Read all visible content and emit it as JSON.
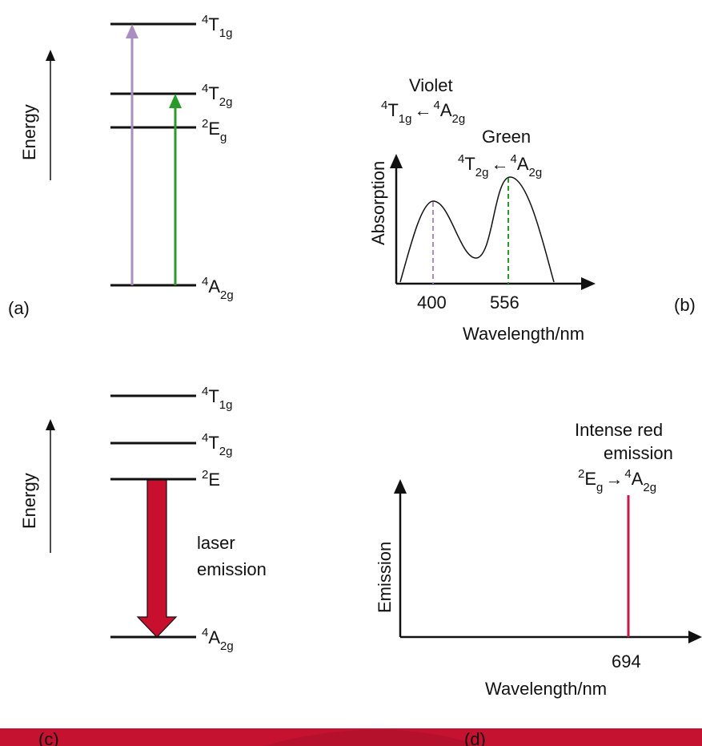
{
  "colors": {
    "violet": "#ab8ec0",
    "green": "#2a9a2a",
    "laser": "#c8102e",
    "emission_line": "#c8184a",
    "banner": "#c41230",
    "banner_dark": "#a50d28"
  },
  "panel_a": {
    "tag": "(a)",
    "axis_label": "Energy",
    "levels": [
      {
        "base": "T",
        "sup": "4",
        "sub": "1g"
      },
      {
        "base": "T",
        "sup": "4",
        "sub": "2g"
      },
      {
        "base": "E",
        "sup": "2",
        "sub": "g"
      },
      {
        "base": "A",
        "sup": "4",
        "sub": "2g"
      }
    ]
  },
  "panel_b": {
    "tag": "(b)",
    "ylabel": "Absorption",
    "xlabel": "Wavelength/nm",
    "peak1": {
      "color_name": "Violet",
      "upper": {
        "base": "T",
        "sup": "4",
        "sub": "1g"
      },
      "arrow": "←",
      "lower": {
        "base": "A",
        "sup": "4",
        "sub": "2g"
      }
    },
    "peak2": {
      "color_name": "Green",
      "upper": {
        "base": "T",
        "sup": "4",
        "sub": "2g"
      },
      "arrow": "←",
      "lower": {
        "base": "A",
        "sup": "4",
        "sub": "2g"
      }
    },
    "ticks": [
      "400",
      "556"
    ]
  },
  "panel_c": {
    "tag": "(c)",
    "axis_label": "Energy",
    "levels": [
      {
        "base": "T",
        "sup": "4",
        "sub": "1g"
      },
      {
        "base": "T",
        "sup": "4",
        "sub": "2g"
      },
      {
        "base": "E",
        "sup": "2",
        "sub": ""
      },
      {
        "base": "A",
        "sup": "4",
        "sub": "2g"
      }
    ],
    "arrow_label_1": "laser",
    "arrow_label_2": "emission"
  },
  "panel_d": {
    "tag": "(d)",
    "ylabel": "Emission",
    "xlabel": "Wavelength/nm",
    "title_1": "Intense red",
    "title_2": "emission",
    "transition": {
      "upper": {
        "base": "E",
        "sup": "2",
        "sub": "g"
      },
      "arrow": "→",
      "lower": {
        "base": "A",
        "sup": "4",
        "sub": "2g"
      }
    },
    "tick": "694"
  }
}
